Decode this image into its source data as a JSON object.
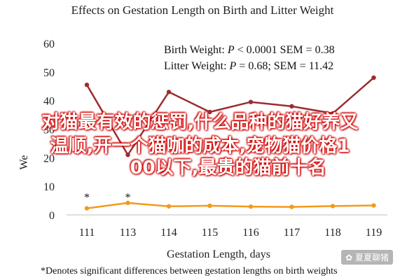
{
  "chart_data": {
    "type": "line",
    "title": "Effects on Gestation Length on Birth and Litter Weight",
    "xlabel": "Gestation Length, days",
    "ylabel": "We",
    "categories": [
      "111",
      "113",
      "114",
      "115",
      "116",
      "117",
      "118",
      "119"
    ],
    "ylim": [
      0,
      60
    ],
    "yticks": [
      "0",
      "10",
      "20",
      "30",
      "40",
      "50",
      "60"
    ],
    "grid": false,
    "legend_position": "top-right",
    "series": [
      {
        "name": "Litter Weight",
        "color": "#9b2d30",
        "values": [
          45.5,
          21,
          43,
          36,
          39.5,
          38,
          35.5,
          48
        ]
      },
      {
        "name": "Birth Weight",
        "color": "#f39a1c",
        "values": [
          2.3,
          4.2,
          3.0,
          3.2,
          2.9,
          2.8,
          3.1,
          3.3
        ]
      }
    ],
    "significance_markers": [
      {
        "category": "111",
        "label": "*"
      },
      {
        "category": "113",
        "label": "*"
      }
    ],
    "legend": [
      {
        "prefix": "Birth Weight: ",
        "var": "P",
        "rest": " < 0.0001 SEM = 0.38"
      },
      {
        "prefix": "Litter Weight: ",
        "var": "P",
        "rest": " = 0.68; SEM = 11.42"
      }
    ],
    "footnote": "*Denotes significant differences between gestation lengths on birth weights"
  },
  "overlay": {
    "line1": "对猫最有效的惩罚,什么品种的猫好养又",
    "line2": "温顺,开一个猫咖的成本,宠物猫价格1",
    "line3": "00以下,最贵的猫前十名"
  },
  "watermark": "✿ 夏夏聊猪"
}
